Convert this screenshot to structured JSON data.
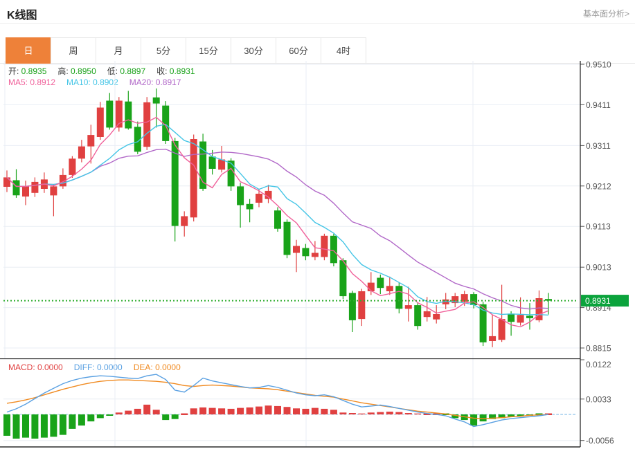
{
  "header": {
    "title": "K线图",
    "link": "基本面分析>"
  },
  "tabs": {
    "items": [
      {
        "key": "day",
        "label": "日",
        "active": true
      },
      {
        "key": "week",
        "label": "周",
        "active": false
      },
      {
        "key": "month",
        "label": "月",
        "active": false
      },
      {
        "key": "5min",
        "label": "5分",
        "active": false
      },
      {
        "key": "15min",
        "label": "15分",
        "active": false
      },
      {
        "key": "30min",
        "label": "30分",
        "active": false
      },
      {
        "key": "60min",
        "label": "60分",
        "active": false
      },
      {
        "key": "4hour",
        "label": "4时",
        "active": false
      }
    ]
  },
  "legend": {
    "value_color": "#15a015",
    "ohlc": [
      {
        "name": "open",
        "label": "开:",
        "value": "0.8935"
      },
      {
        "name": "high",
        "label": "高:",
        "value": "0.8950"
      },
      {
        "name": "low",
        "label": "低:",
        "value": "0.8897"
      },
      {
        "name": "close",
        "label": "收:",
        "value": "0.8931"
      }
    ],
    "ma": [
      {
        "name": "ma5",
        "label": "MA5:",
        "value": "0.8912",
        "color": "#f0609a"
      },
      {
        "name": "ma10",
        "label": "MA10:",
        "value": "0.8902",
        "color": "#45c5e6"
      },
      {
        "name": "ma20",
        "label": "MA20:",
        "value": "0.8917",
        "color": "#b168c8"
      }
    ]
  },
  "macd_legend": [
    {
      "name": "macd",
      "label": "MACD:",
      "value": "0.0000",
      "color": "#e04040"
    },
    {
      "name": "diff",
      "label": "DIFF:",
      "value": "0.0000",
      "color": "#59a0e2"
    },
    {
      "name": "dea",
      "label": "DEA:",
      "value": "0.0000",
      "color": "#f08a20"
    }
  ],
  "axis": {
    "main_labels": [
      "0.9510",
      "0.9411",
      "0.9311",
      "0.9212",
      "0.9113",
      "0.9013",
      "0.8914",
      "0.8815"
    ],
    "macd_labels": [
      "0.0122",
      "0.0033",
      "-0.0056"
    ],
    "current_price_label": "0.8931"
  },
  "colors": {
    "up": "#e04040",
    "down": "#19a319",
    "ma5": "#f0609a",
    "ma10": "#45c5e6",
    "ma20": "#b168c8",
    "diff": "#59a0e2",
    "dea": "#f08a20",
    "tab_active": "#ee8139",
    "badge": "#0ba33c",
    "price_line": "#2fae2f",
    "grid": "#e9eef4",
    "dark_line": "#2b2b2b",
    "zero_line": "#8fc3ea"
  },
  "chart_data": {
    "type": "candlestick",
    "panels": [
      "price+ma5/ma10/ma20",
      "macd"
    ],
    "main_ylim": [
      0.8815,
      0.951
    ],
    "main_gridlines": [
      0.951,
      0.9411,
      0.9311,
      0.9212,
      0.9113,
      0.9013,
      0.8914,
      0.8815
    ],
    "current_price": 0.8931,
    "ohlc_last": {
      "open": 0.8935,
      "high": 0.895,
      "low": 0.8897,
      "close": 0.8931
    },
    "ma_last": {
      "ma5": 0.8912,
      "ma10": 0.8902,
      "ma20": 0.8917
    },
    "candles": [
      [
        0.921,
        0.925,
        0.9197,
        0.9233
      ],
      [
        0.9226,
        0.9253,
        0.9183,
        0.9189
      ],
      [
        0.9186,
        0.9225,
        0.9165,
        0.9211
      ],
      [
        0.9195,
        0.9233,
        0.9185,
        0.9222
      ],
      [
        0.9205,
        0.9245,
        0.9195,
        0.9228
      ],
      [
        0.9189,
        0.9215,
        0.9138,
        0.9211
      ],
      [
        0.9211,
        0.9255,
        0.9205,
        0.9239
      ],
      [
        0.9239,
        0.9285,
        0.9232,
        0.9279
      ],
      [
        0.9279,
        0.9325,
        0.927,
        0.9309
      ],
      [
        0.9309,
        0.9362,
        0.9267,
        0.9337
      ],
      [
        0.9332,
        0.9418,
        0.9325,
        0.9404
      ],
      [
        0.9421,
        0.944,
        0.935,
        0.9355
      ],
      [
        0.9355,
        0.943,
        0.9345,
        0.9421
      ],
      [
        0.9419,
        0.9445,
        0.935,
        0.9353
      ],
      [
        0.9357,
        0.937,
        0.929,
        0.9296
      ],
      [
        0.9308,
        0.943,
        0.93,
        0.9417
      ],
      [
        0.9429,
        0.9451,
        0.9355,
        0.9414
      ],
      [
        0.9409,
        0.942,
        0.9315,
        0.9322
      ],
      [
        0.9322,
        0.933,
        0.9076,
        0.9114
      ],
      [
        0.9114,
        0.915,
        0.9088,
        0.9138
      ],
      [
        0.9135,
        0.9338,
        0.9125,
        0.9327
      ],
      [
        0.9321,
        0.934,
        0.92,
        0.9205
      ],
      [
        0.9284,
        0.93,
        0.924,
        0.9254
      ],
      [
        0.9252,
        0.931,
        0.9245,
        0.9277
      ],
      [
        0.9274,
        0.928,
        0.92,
        0.9211
      ],
      [
        0.9211,
        0.922,
        0.911,
        0.9165
      ],
      [
        0.9168,
        0.918,
        0.9123,
        0.9155
      ],
      [
        0.9171,
        0.9205,
        0.916,
        0.9193
      ],
      [
        0.918,
        0.9215,
        0.917,
        0.92
      ],
      [
        0.9152,
        0.916,
        0.91,
        0.9107
      ],
      [
        0.9124,
        0.913,
        0.9035,
        0.9043
      ],
      [
        0.9048,
        0.908,
        0.9001,
        0.9065
      ],
      [
        0.906,
        0.907,
        0.903,
        0.904
      ],
      [
        0.9038,
        0.9077,
        0.903,
        0.9048
      ],
      [
        0.9038,
        0.9095,
        0.903,
        0.909
      ],
      [
        0.909,
        0.9095,
        0.9015,
        0.9023
      ],
      [
        0.903,
        0.9035,
        0.8935,
        0.8942
      ],
      [
        0.895,
        0.8955,
        0.8854,
        0.8883
      ],
      [
        0.8886,
        0.896,
        0.8869,
        0.8954
      ],
      [
        0.8954,
        0.9001,
        0.8945,
        0.8975
      ],
      [
        0.8987,
        0.8995,
        0.8947,
        0.8962
      ],
      [
        0.8954,
        0.899,
        0.8945,
        0.8967
      ],
      [
        0.8967,
        0.8975,
        0.89,
        0.8911
      ],
      [
        0.8911,
        0.8965,
        0.888,
        0.892
      ],
      [
        0.892,
        0.8925,
        0.886,
        0.8869
      ],
      [
        0.8891,
        0.894,
        0.888,
        0.8905
      ],
      [
        0.8885,
        0.892,
        0.8875,
        0.8898
      ],
      [
        0.8922,
        0.895,
        0.891,
        0.8934
      ],
      [
        0.8925,
        0.895,
        0.8915,
        0.8942
      ],
      [
        0.8928,
        0.8955,
        0.8918,
        0.8947
      ],
      [
        0.8947,
        0.8952,
        0.8912,
        0.892
      ],
      [
        0.8922,
        0.8928,
        0.882,
        0.8829
      ],
      [
        0.8832,
        0.8896,
        0.8817,
        0.8844
      ],
      [
        0.8835,
        0.897,
        0.883,
        0.8886
      ],
      [
        0.8899,
        0.8905,
        0.8845,
        0.8879
      ],
      [
        0.8877,
        0.8939,
        0.887,
        0.8896
      ],
      [
        0.8894,
        0.8925,
        0.886,
        0.8888
      ],
      [
        0.8883,
        0.8956,
        0.8878,
        0.8937
      ],
      [
        0.8935,
        0.895,
        0.8897,
        0.8931
      ]
    ],
    "macd": {
      "ylim": [
        -0.0056,
        0.0122
      ],
      "gridlines": [
        0.0122,
        0.0033,
        -0.0056
      ],
      "last": {
        "macd": 0.0,
        "diff": 0.0,
        "dea": 0.0
      },
      "hist": [
        -0.0046,
        -0.0052,
        -0.005,
        -0.0052,
        -0.005,
        -0.0048,
        -0.0044,
        -0.0031,
        -0.0024,
        -0.0015,
        -0.0008,
        -0.0003,
        0.0004,
        0.0008,
        0.0012,
        0.0021,
        0.001,
        -0.0012,
        -0.001,
        0.0001,
        0.0013,
        0.0015,
        0.0014,
        0.0013,
        0.0012,
        0.0014,
        0.0015,
        0.0017,
        0.0019,
        0.0018,
        0.0016,
        0.0013,
        0.0012,
        0.0014,
        0.0012,
        0.001,
        0.0004,
        0.0003,
        0.0002,
        0.0004,
        0.0005,
        0.0006,
        0.0005,
        0.0003,
        0.0002,
        0.0001,
        0.0001,
        -0.0001,
        -0.0008,
        -0.0012,
        -0.0024,
        -0.0015,
        -0.001,
        -0.0008,
        -0.0006,
        -0.0004,
        -0.0003,
        -0.0001,
        0.0
      ],
      "diff": [
        0.0005,
        0.0012,
        0.0022,
        0.0034,
        0.0046,
        0.0056,
        0.0066,
        0.0073,
        0.0078,
        0.0081,
        0.0083,
        0.0082,
        0.008,
        0.0078,
        0.0077,
        0.0083,
        0.0086,
        0.0075,
        0.0052,
        0.0048,
        0.0062,
        0.0078,
        0.0072,
        0.0068,
        0.0064,
        0.006,
        0.0057,
        0.0058,
        0.0062,
        0.0058,
        0.0052,
        0.0046,
        0.0042,
        0.004,
        0.0042,
        0.0038,
        0.003,
        0.0022,
        0.0016,
        0.0018,
        0.002,
        0.0017,
        0.0013,
        0.0009,
        0.0005,
        0.0002,
        0.0,
        -0.0003,
        -0.001,
        -0.0016,
        -0.0026,
        -0.0022,
        -0.0017,
        -0.0012,
        -0.0009,
        -0.0007,
        -0.0005,
        -0.0003,
        0.0
      ],
      "dea": [
        0.0024,
        0.0027,
        0.0031,
        0.0036,
        0.0042,
        0.0048,
        0.0054,
        0.0059,
        0.0064,
        0.0068,
        0.0071,
        0.0073,
        0.0074,
        0.0074,
        0.0073,
        0.0072,
        0.0071,
        0.0069,
        0.0066,
        0.0062,
        0.006,
        0.0062,
        0.0063,
        0.0062,
        0.0061,
        0.0059,
        0.0057,
        0.0056,
        0.0055,
        0.0053,
        0.005,
        0.0047,
        0.0044,
        0.0041,
        0.0039,
        0.0037,
        0.0033,
        0.0029,
        0.0025,
        0.0022,
        0.0019,
        0.0016,
        0.0013,
        0.001,
        0.0007,
        0.0005,
        0.0003,
        0.0001,
        -0.0002,
        -0.0005,
        -0.0008,
        -0.0009,
        -0.0008,
        -0.0007,
        -0.0005,
        -0.0004,
        -0.0002,
        -0.0001,
        0.0
      ]
    }
  }
}
